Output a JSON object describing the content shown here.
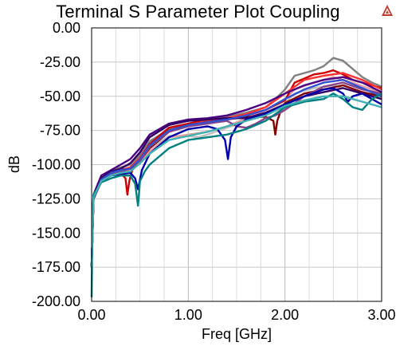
{
  "title": "Terminal S Parameter Plot Coupling",
  "logo_icon": "warning-triangle-logo-icon",
  "chart_data": {
    "type": "line",
    "title": "Terminal S Parameter Plot Coupling",
    "xlabel": "Freq [GHz]",
    "ylabel": "dB",
    "xlim": [
      0,
      3
    ],
    "ylim": [
      -200,
      0
    ],
    "xticks": [
      {
        "value": 0,
        "label": "0.00"
      },
      {
        "value": 1,
        "label": "1.00"
      },
      {
        "value": 2,
        "label": "2.00"
      },
      {
        "value": 3,
        "label": "3.00"
      }
    ],
    "yticks": [
      {
        "value": 0,
        "label": "0.00"
      },
      {
        "value": -25,
        "label": "-25.00"
      },
      {
        "value": -50,
        "label": "-50.00"
      },
      {
        "value": -75,
        "label": "-75.00"
      },
      {
        "value": -100,
        "label": "-100.00"
      },
      {
        "value": -125,
        "label": "-125.00"
      },
      {
        "value": -150,
        "label": "-150.00"
      },
      {
        "value": -175,
        "label": "-175.00"
      },
      {
        "value": -200,
        "label": "-200.00"
      }
    ],
    "grid": true,
    "series": [
      {
        "color": "#808080",
        "x": [
          0,
          0.02,
          0.1,
          0.2,
          0.3,
          0.4,
          0.5,
          0.6,
          0.8,
          1.0,
          1.2,
          1.4,
          1.6,
          1.8,
          1.9,
          2.0,
          2.1,
          2.2,
          2.3,
          2.4,
          2.5,
          2.6,
          2.7,
          2.8,
          2.9,
          3.0
        ],
        "y": [
          -175,
          -125,
          -110,
          -104,
          -102,
          -100,
          -93,
          -83,
          -74,
          -70,
          -67,
          -65,
          -62,
          -58,
          -52,
          -45,
          -35,
          -33,
          -31,
          -28,
          -22,
          -24,
          -30,
          -36,
          -40,
          -43
        ]
      },
      {
        "color": "#c0c0c0",
        "x": [
          0,
          0.02,
          0.1,
          0.2,
          0.3,
          0.4,
          0.5,
          0.6,
          0.8,
          1.0,
          1.1,
          1.2,
          1.4,
          1.6,
          1.8,
          2.0,
          2.1,
          2.3,
          2.5,
          2.7,
          2.9,
          3.0
        ],
        "y": [
          -175,
          -125,
          -112,
          -108,
          -106,
          -103,
          -97,
          -88,
          -79,
          -79,
          -80,
          -78,
          -73,
          -68,
          -62,
          -55,
          -48,
          -44,
          -42,
          -46,
          -50,
          -52
        ]
      },
      {
        "color": "#e8a0a0",
        "x": [
          0,
          0.02,
          0.1,
          0.2,
          0.3,
          0.4,
          0.5,
          0.6,
          0.8,
          1.0,
          1.2,
          1.4,
          1.6,
          1.8,
          2.0,
          2.1,
          2.3,
          2.5,
          2.7,
          2.9,
          3.0
        ],
        "y": [
          -175,
          -125,
          -113,
          -108,
          -106,
          -104,
          -98,
          -90,
          -80,
          -78,
          -76,
          -72,
          -66,
          -60,
          -52,
          -45,
          -40,
          -36,
          -40,
          -45,
          -47
        ]
      },
      {
        "color": "#cc0000",
        "x": [
          0,
          0.02,
          0.1,
          0.2,
          0.3,
          0.35,
          0.37,
          0.39,
          0.42,
          0.5,
          0.6,
          0.8,
          1.0,
          1.2,
          1.4,
          1.6,
          1.8,
          2.0,
          2.1,
          2.2,
          2.3,
          2.4,
          2.5,
          2.6,
          2.7,
          2.8,
          2.9,
          3.0
        ],
        "y": [
          -175,
          -125,
          -110,
          -105,
          -106,
          -110,
          -122,
          -112,
          -104,
          -95,
          -85,
          -73,
          -70,
          -67,
          -66,
          -64,
          -60,
          -53,
          -40,
          -37,
          -34,
          -33,
          -31,
          -34,
          -38,
          -40,
          -42,
          -44
        ]
      },
      {
        "color": "#ff3030",
        "x": [
          0,
          0.02,
          0.1,
          0.2,
          0.3,
          0.4,
          0.5,
          0.6,
          0.8,
          1.0,
          1.2,
          1.4,
          1.6,
          1.8,
          2.0,
          2.2,
          2.4,
          2.6,
          2.8,
          3.0
        ],
        "y": [
          -175,
          -124,
          -111,
          -106,
          -104,
          -102,
          -95,
          -86,
          -75,
          -71,
          -68,
          -66,
          -63,
          -58,
          -48,
          -38,
          -35,
          -33,
          -38,
          -45
        ]
      },
      {
        "color": "#800000",
        "x": [
          0,
          0.02,
          0.1,
          0.2,
          0.3,
          0.4,
          0.5,
          0.6,
          0.8,
          1.0,
          1.2,
          1.4,
          1.6,
          1.8,
          1.88,
          1.9,
          1.92,
          1.96,
          2.0,
          2.2,
          2.4,
          2.6,
          2.8,
          3.0
        ],
        "y": [
          -175,
          -124,
          -111,
          -106,
          -104,
          -103,
          -97,
          -88,
          -76,
          -71,
          -69,
          -67,
          -65,
          -65,
          -68,
          -78,
          -68,
          -60,
          -55,
          -48,
          -45,
          -42,
          -47,
          -50
        ]
      },
      {
        "color": "#884488",
        "x": [
          0,
          0.02,
          0.1,
          0.2,
          0.3,
          0.4,
          0.5,
          0.6,
          0.8,
          1.0,
          1.2,
          1.4,
          1.5,
          1.6,
          1.7,
          1.8,
          1.9,
          2.0,
          2.2,
          2.4,
          2.6,
          2.8,
          3.0
        ],
        "y": [
          -175,
          -124,
          -112,
          -107,
          -105,
          -103,
          -97,
          -87,
          -76,
          -72,
          -70,
          -68,
          -72,
          -73,
          -70,
          -66,
          -64,
          -60,
          -50,
          -43,
          -40,
          -45,
          -48
        ]
      },
      {
        "color": "#4b0082",
        "x": [
          0,
          0.02,
          0.1,
          0.2,
          0.3,
          0.4,
          0.5,
          0.6,
          0.8,
          1.0,
          1.2,
          1.4,
          1.6,
          1.8,
          2.0,
          2.2,
          2.4,
          2.6,
          2.8,
          3.0
        ],
        "y": [
          -175,
          -122,
          -108,
          -104,
          -100,
          -96,
          -88,
          -78,
          -70,
          -67,
          -66,
          -64,
          -60,
          -55,
          -48,
          -42,
          -38,
          -36,
          -40,
          -47
        ]
      },
      {
        "color": "#330066",
        "x": [
          0,
          0.02,
          0.1,
          0.2,
          0.3,
          0.4,
          0.5,
          0.6,
          0.8,
          1.0,
          1.2,
          1.4,
          1.6,
          1.8,
          2.0,
          2.2,
          2.4,
          2.6,
          2.8,
          3.0
        ],
        "y": [
          -175,
          -123,
          -110,
          -105,
          -103,
          -99,
          -91,
          -80,
          -71,
          -68,
          -67,
          -66,
          -66,
          -62,
          -56,
          -50,
          -47,
          -44,
          -48,
          -52
        ]
      },
      {
        "color": "#0000aa",
        "x": [
          0,
          0.02,
          0.1,
          0.2,
          0.3,
          0.4,
          0.45,
          0.48,
          0.52,
          0.6,
          0.8,
          1.0,
          1.2,
          1.3,
          1.38,
          1.41,
          1.44,
          1.5,
          1.6,
          1.8,
          2.0,
          2.2,
          2.4,
          2.5,
          2.6,
          2.65,
          2.7,
          2.8,
          2.9,
          3.0
        ],
        "y": [
          -175,
          -125,
          -112,
          -108,
          -107,
          -106,
          -110,
          -118,
          -104,
          -92,
          -80,
          -74,
          -72,
          -74,
          -82,
          -96,
          -80,
          -72,
          -67,
          -63,
          -56,
          -50,
          -45,
          -44,
          -48,
          -54,
          -50,
          -48,
          -52,
          -56
        ]
      },
      {
        "color": "#3050d0",
        "x": [
          0,
          0.02,
          0.1,
          0.2,
          0.3,
          0.4,
          0.5,
          0.6,
          0.8,
          1.0,
          1.2,
          1.4,
          1.6,
          1.8,
          2.0,
          2.2,
          2.4,
          2.6,
          2.8,
          3.0
        ],
        "y": [
          -175,
          -124,
          -111,
          -106,
          -104,
          -103,
          -96,
          -86,
          -75,
          -71,
          -69,
          -67,
          -64,
          -60,
          -52,
          -45,
          -40,
          -38,
          -44,
          -50
        ]
      },
      {
        "color": "#008080",
        "x": [
          0,
          0.01,
          0.02,
          0.1,
          0.2,
          0.3,
          0.4,
          0.45,
          0.48,
          0.5,
          0.55,
          0.6,
          0.8,
          1.0,
          1.2,
          1.4,
          1.6,
          1.8,
          2.0,
          2.2,
          2.4,
          2.5,
          2.6,
          2.7,
          2.8,
          2.9,
          3.0
        ],
        "y": [
          -197,
          -135,
          -122,
          -113,
          -110,
          -108,
          -108,
          -114,
          -130,
          -112,
          -105,
          -100,
          -88,
          -82,
          -80,
          -78,
          -74,
          -68,
          -58,
          -54,
          -52,
          -48,
          -52,
          -58,
          -60,
          -52,
          -48
        ]
      },
      {
        "color": "#40b0b0",
        "x": [
          0,
          0.02,
          0.1,
          0.2,
          0.3,
          0.4,
          0.5,
          0.6,
          0.8,
          1.0,
          1.2,
          1.4,
          1.6,
          1.8,
          2.0,
          2.2,
          2.4,
          2.6,
          2.8,
          3.0
        ],
        "y": [
          -175,
          -124,
          -112,
          -108,
          -106,
          -105,
          -99,
          -92,
          -82,
          -79,
          -76,
          -72,
          -68,
          -64,
          -57,
          -53,
          -50,
          -50,
          -54,
          -58
        ]
      }
    ]
  }
}
